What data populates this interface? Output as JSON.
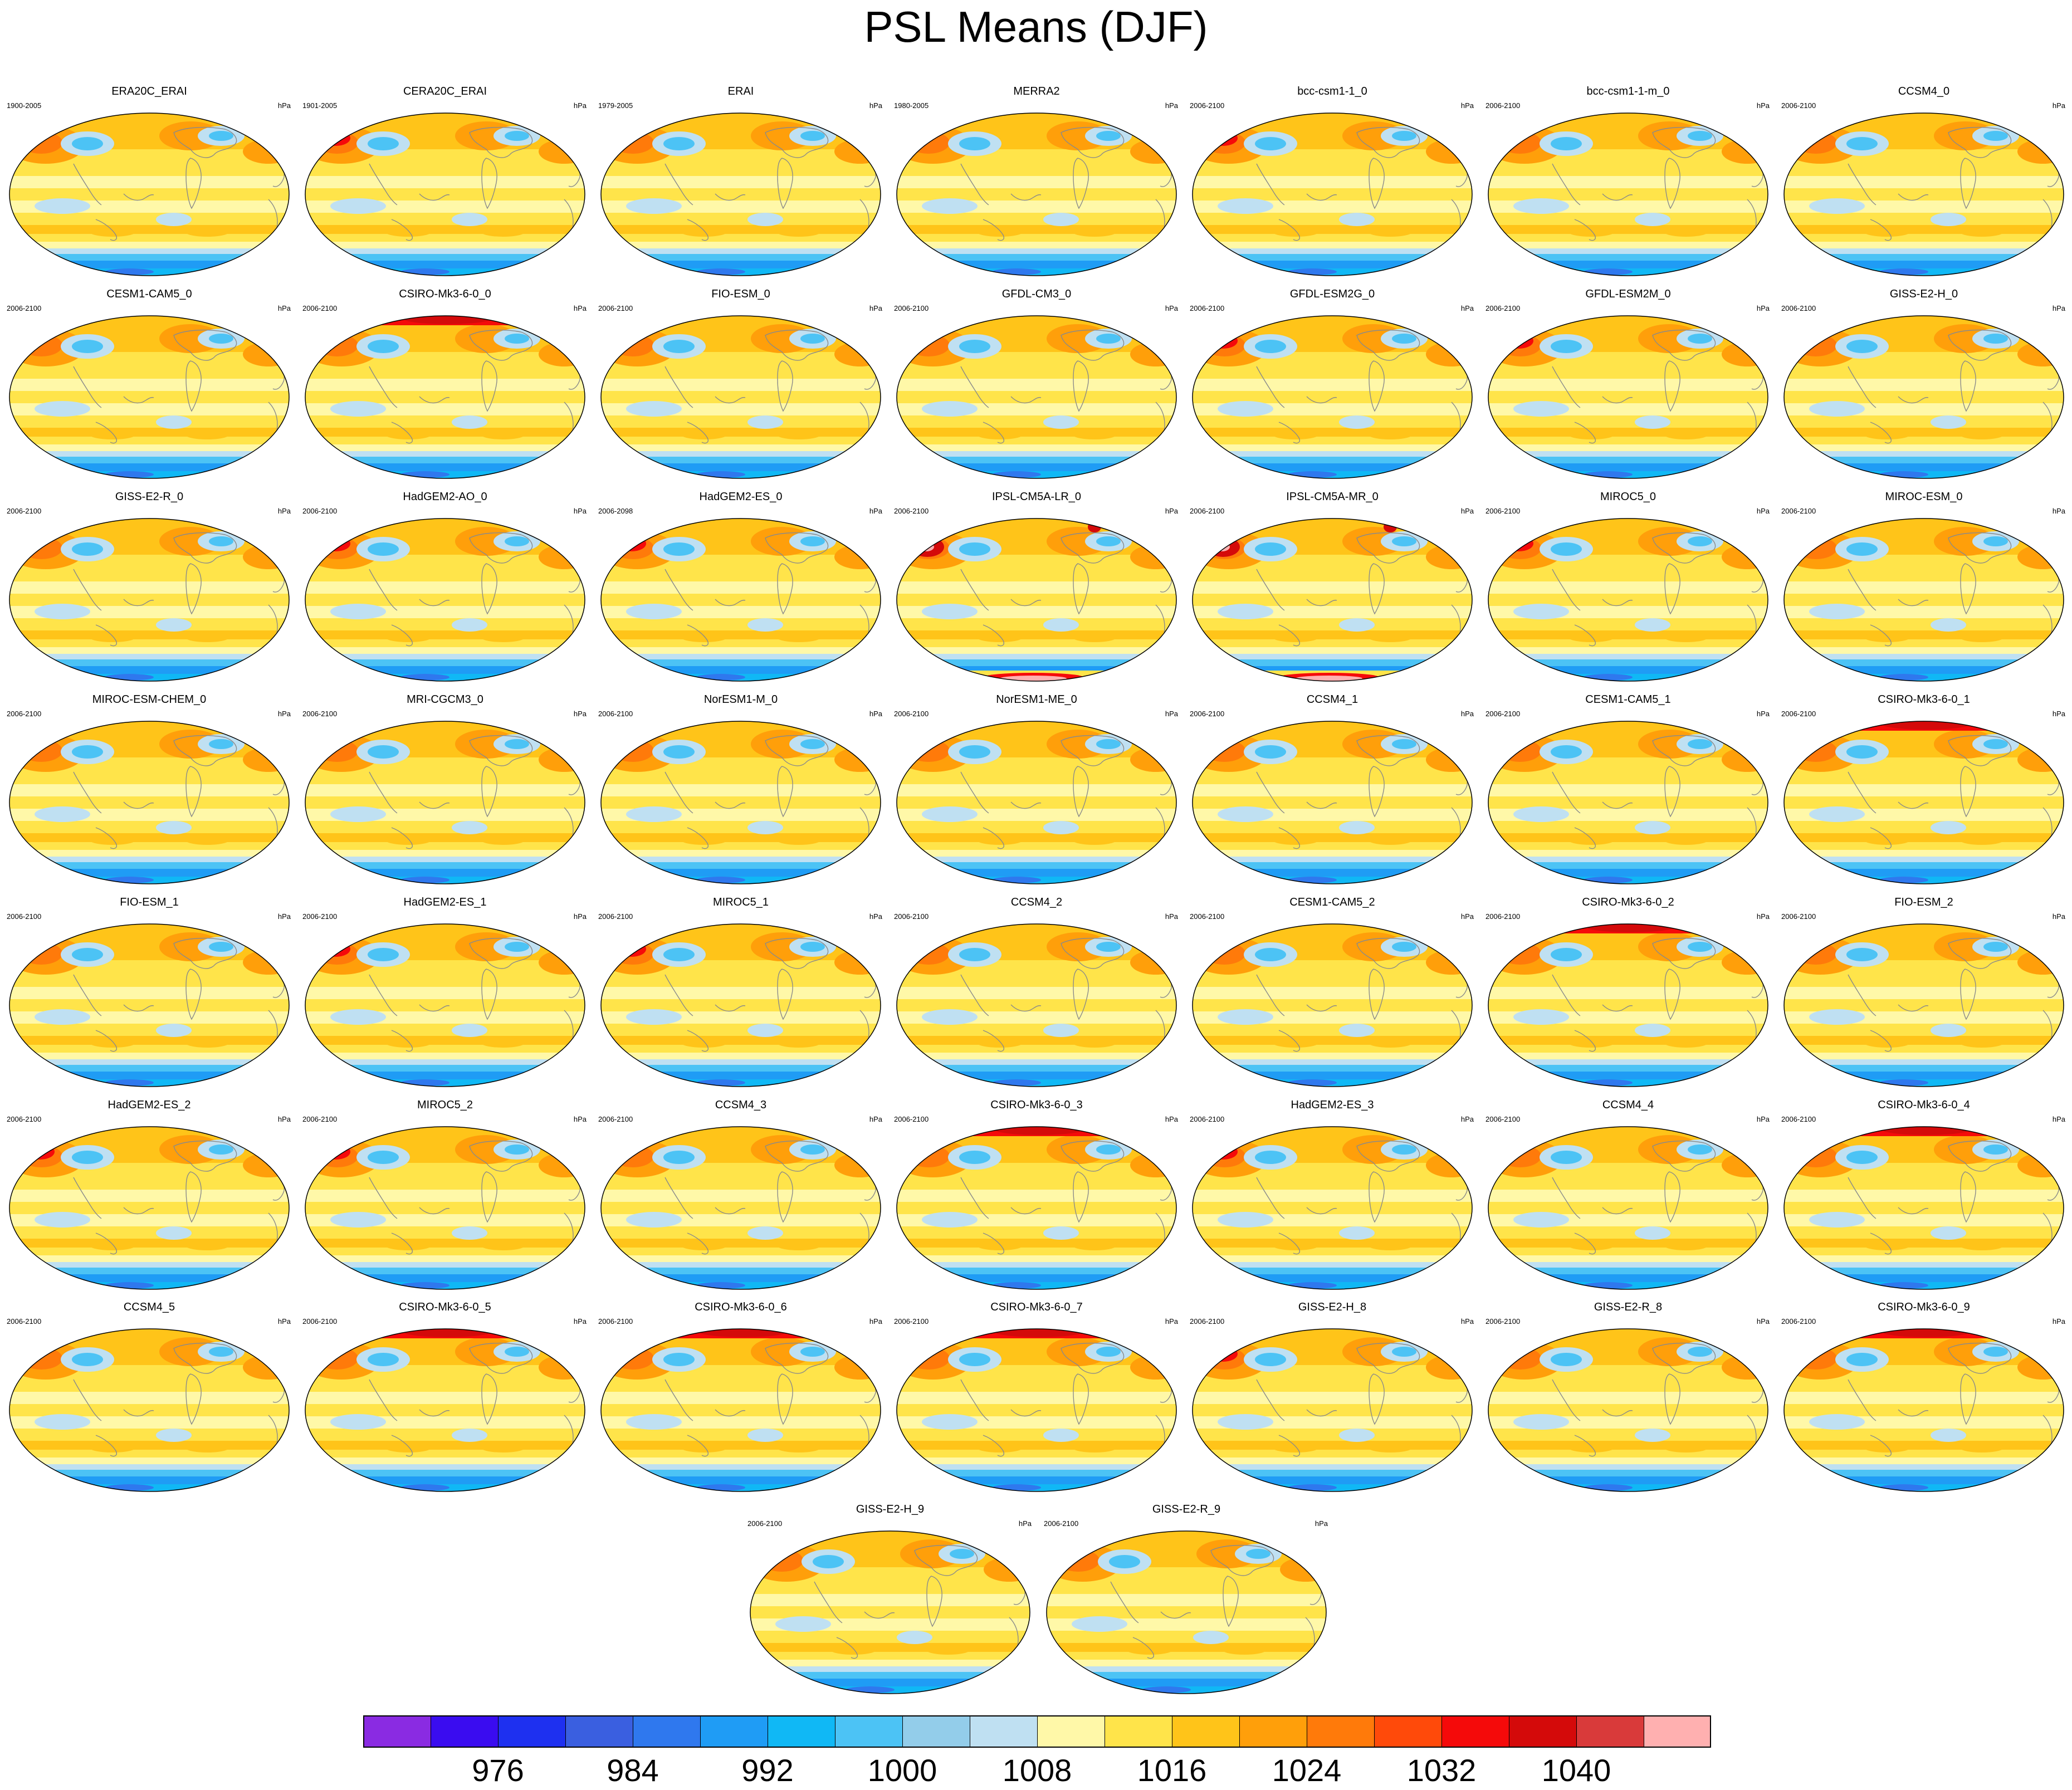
{
  "title": "PSL Means (DJF)",
  "unit": "hPa",
  "panels": [
    {
      "name": "ERA20C_ERAI",
      "years": "1900-2005",
      "v": 0
    },
    {
      "name": "CERA20C_ERAI",
      "years": "1901-2005",
      "v": 1
    },
    {
      "name": "ERAI",
      "years": "1979-2005",
      "v": 0
    },
    {
      "name": "MERRA2",
      "years": "1980-2005",
      "v": 0
    },
    {
      "name": "bcc-csm1-1_0",
      "years": "2006-2100",
      "v": 1
    },
    {
      "name": "bcc-csm1-1-m_0",
      "years": "2006-2100",
      "v": 0
    },
    {
      "name": "CCSM4_0",
      "years": "2006-2100",
      "v": 0
    },
    {
      "name": "CESM1-CAM5_0",
      "years": "2006-2100",
      "v": 0
    },
    {
      "name": "CSIRO-Mk3-6-0_0",
      "years": "2006-2100",
      "v": 2
    },
    {
      "name": "FIO-ESM_0",
      "years": "2006-2100",
      "v": 0
    },
    {
      "name": "GFDL-CM3_0",
      "years": "2006-2100",
      "v": 0
    },
    {
      "name": "GFDL-ESM2G_0",
      "years": "2006-2100",
      "v": 1
    },
    {
      "name": "GFDL-ESM2M_0",
      "years": "2006-2100",
      "v": 1
    },
    {
      "name": "GISS-E2-H_0",
      "years": "2006-2100",
      "v": 0
    },
    {
      "name": "GISS-E2-R_0",
      "years": "2006-2100",
      "v": 0
    },
    {
      "name": "HadGEM2-AO_0",
      "years": "2006-2100",
      "v": 1
    },
    {
      "name": "HadGEM2-ES_0",
      "years": "2006-2098",
      "v": 1
    },
    {
      "name": "IPSL-CM5A-LR_0",
      "years": "2006-2100",
      "v": 3
    },
    {
      "name": "IPSL-CM5A-MR_0",
      "years": "2006-2100",
      "v": 3
    },
    {
      "name": "MIROC5_0",
      "years": "2006-2100",
      "v": 1
    },
    {
      "name": "MIROC-ESM_0",
      "years": "2006-2100",
      "v": 0
    },
    {
      "name": "MIROC-ESM-CHEM_0",
      "years": "2006-2100",
      "v": 0
    },
    {
      "name": "MRI-CGCM3_0",
      "years": "2006-2100",
      "v": 0
    },
    {
      "name": "NorESM1-M_0",
      "years": "2006-2100",
      "v": 0
    },
    {
      "name": "NorESM1-ME_0",
      "years": "2006-2100",
      "v": 0
    },
    {
      "name": "CCSM4_1",
      "years": "2006-2100",
      "v": 0
    },
    {
      "name": "CESM1-CAM5_1",
      "years": "2006-2100",
      "v": 0
    },
    {
      "name": "CSIRO-Mk3-6-0_1",
      "years": "2006-2100",
      "v": 2
    },
    {
      "name": "FIO-ESM_1",
      "years": "2006-2100",
      "v": 0
    },
    {
      "name": "HadGEM2-ES_1",
      "years": "2006-2100",
      "v": 1
    },
    {
      "name": "MIROC5_1",
      "years": "2006-2100",
      "v": 1
    },
    {
      "name": "CCSM4_2",
      "years": "2006-2100",
      "v": 0
    },
    {
      "name": "CESM1-CAM5_2",
      "years": "2006-2100",
      "v": 0
    },
    {
      "name": "CSIRO-Mk3-6-0_2",
      "years": "2006-2100",
      "v": 2
    },
    {
      "name": "FIO-ESM_2",
      "years": "2006-2100",
      "v": 0
    },
    {
      "name": "HadGEM2-ES_2",
      "years": "2006-2100",
      "v": 1
    },
    {
      "name": "MIROC5_2",
      "years": "2006-2100",
      "v": 1
    },
    {
      "name": "CCSM4_3",
      "years": "2006-2100",
      "v": 0
    },
    {
      "name": "CSIRO-Mk3-6-0_3",
      "years": "2006-2100",
      "v": 2
    },
    {
      "name": "HadGEM2-ES_3",
      "years": "2006-2100",
      "v": 1
    },
    {
      "name": "CCSM4_4",
      "years": "2006-2100",
      "v": 0
    },
    {
      "name": "CSIRO-Mk3-6-0_4",
      "years": "2006-2100",
      "v": 2
    },
    {
      "name": "CCSM4_5",
      "years": "2006-2100",
      "v": 0
    },
    {
      "name": "CSIRO-Mk3-6-0_5",
      "years": "2006-2100",
      "v": 2
    },
    {
      "name": "CSIRO-Mk3-6-0_6",
      "years": "2006-2100",
      "v": 2
    },
    {
      "name": "CSIRO-Mk3-6-0_7",
      "years": "2006-2100",
      "v": 2
    },
    {
      "name": "GISS-E2-H_8",
      "years": "2006-2100",
      "v": 1
    },
    {
      "name": "GISS-E2-R_8",
      "years": "2006-2100",
      "v": 0
    },
    {
      "name": "CSIRO-Mk3-6-0_9",
      "years": "2006-2100",
      "v": 2
    },
    {
      "name": "GISS-E2-H_9",
      "years": "2006-2100",
      "v": 0
    },
    {
      "name": "GISS-E2-R_9",
      "years": "2006-2100",
      "v": 0
    }
  ],
  "colorbar": {
    "colors": [
      "#8a2be2",
      "#3a0cf0",
      "#1e30f0",
      "#3a5fe0",
      "#2f78ee",
      "#1f9cf5",
      "#10b8f5",
      "#4cc3f5",
      "#93cdea",
      "#bfe0f2",
      "#fff8a8",
      "#ffe44a",
      "#ffc419",
      "#ff9f0a",
      "#ff7a0a",
      "#ff4a0a",
      "#f50a0a",
      "#d40a0a",
      "#d93a3a",
      "#ffb0b0"
    ],
    "tick_labels": [
      "976",
      "984",
      "992",
      "1000",
      "1008",
      "1016",
      "1024",
      "1032",
      "1040"
    ]
  }
}
